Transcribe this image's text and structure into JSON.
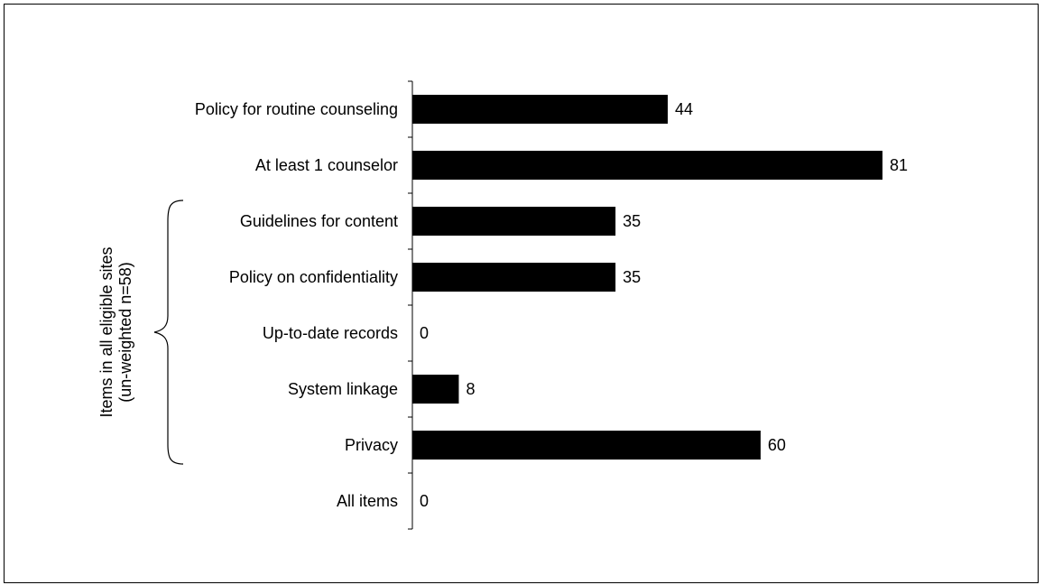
{
  "chart_data": {
    "type": "bar",
    "orientation": "horizontal",
    "categories": [
      "Policy for routine counseling",
      "At least 1 counselor",
      "Guidelines for content",
      "Policy on confidentiality",
      "Up-to-date records",
      "System linkage",
      "Privacy",
      "All items"
    ],
    "values": [
      44,
      81,
      35,
      35,
      0,
      8,
      60,
      0
    ],
    "data_labels": [
      "44",
      "81",
      "35",
      "35",
      "0",
      "8",
      "60",
      "0"
    ],
    "bar_color": "#000000",
    "group_label_line1": "Items in all eligible sites",
    "group_label_line2": "(un-weighted n=58)",
    "group_categories": [
      "Guidelines for content",
      "Policy on confidentiality",
      "Up-to-date records",
      "System linkage",
      "Privacy"
    ],
    "xlim": [
      0,
      100
    ],
    "grid": false,
    "legend": "none"
  }
}
